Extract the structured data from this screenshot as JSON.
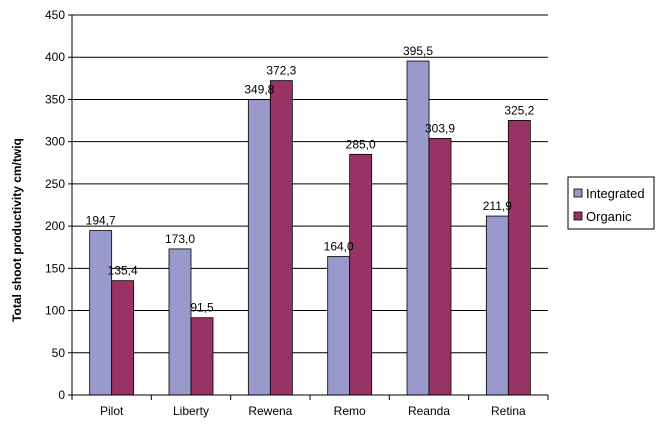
{
  "chart_data": {
    "type": "bar",
    "title": "",
    "xlabel": "",
    "ylabel": "Total shoot productivity cm/twiq",
    "categories": [
      "Pilot",
      "Liberty",
      "Rewena",
      "Remo",
      "Reanda",
      "Retina"
    ],
    "series": [
      {
        "name": "Integrated",
        "color": "#9999CC",
        "values": [
          194.7,
          173.0,
          349.8,
          164.0,
          395.5,
          211.9
        ],
        "labels": [
          "194,7",
          "173,0",
          "349,8",
          "164,0",
          "395,5",
          "211,9"
        ]
      },
      {
        "name": "Organic",
        "color": "#993366",
        "values": [
          135.4,
          91.5,
          372.3,
          285.0,
          303.9,
          325.2
        ],
        "labels": [
          "135,4",
          "91,5",
          "372,3",
          "285,0",
          "303,9",
          "325,2"
        ]
      }
    ],
    "ylim": [
      0,
      450
    ],
    "yticks": [
      0,
      50,
      100,
      150,
      200,
      250,
      300,
      350,
      400,
      450
    ],
    "grid": true,
    "legend": "right"
  }
}
